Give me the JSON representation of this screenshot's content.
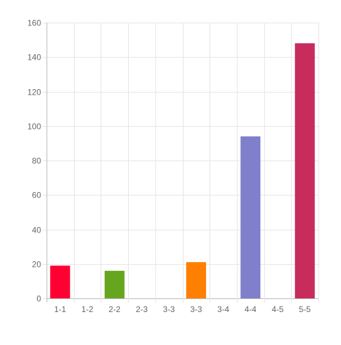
{
  "chart_data": {
    "type": "bar",
    "categories": [
      "1-1",
      "1-2",
      "2-2",
      "2-3",
      "3-3",
      "3-3",
      "3-4",
      "4-4",
      "4-5",
      "5-5"
    ],
    "values": [
      19,
      0,
      16,
      0,
      0,
      21,
      0,
      94,
      0,
      148
    ],
    "colors": [
      "#ff0033",
      null,
      "#66a61e",
      null,
      null,
      "#ff7f00",
      null,
      "#7f7fcc",
      null,
      "#c72c5c"
    ],
    "yticks": [
      0,
      20,
      40,
      60,
      80,
      100,
      120,
      140,
      160
    ],
    "ylim": [
      0,
      160
    ],
    "grid": true,
    "title": "",
    "xlabel": "",
    "ylabel": ""
  }
}
